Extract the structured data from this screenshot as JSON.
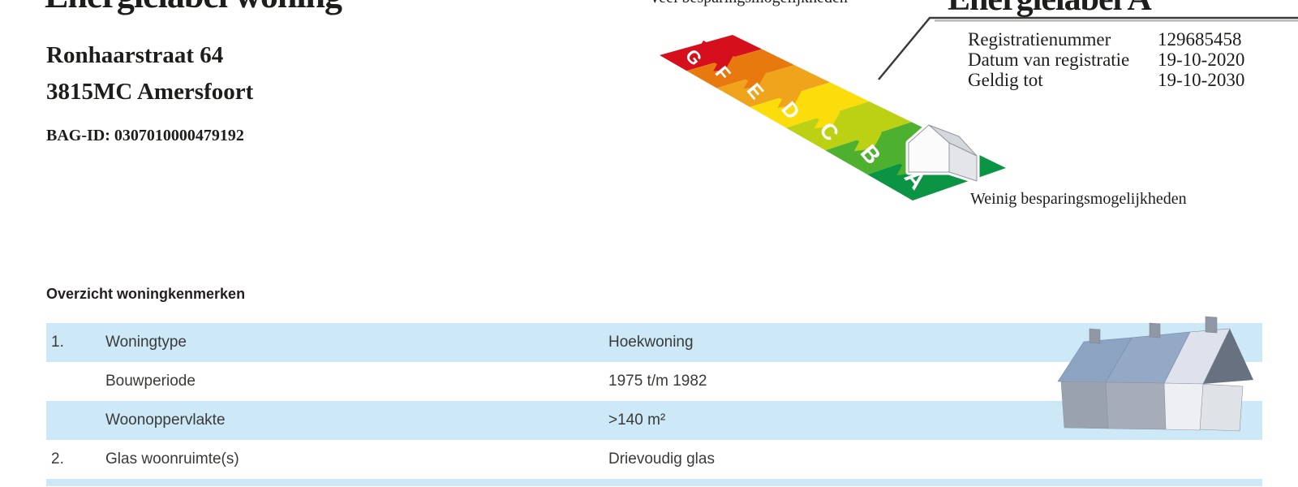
{
  "header": {
    "title": "Energielabel woning",
    "address_line1": "Ronhaarstraat 64",
    "address_line2": "3815MC Amersfoort",
    "bag_id": "BAG-ID: 0307010000479192"
  },
  "energy_scale": {
    "more_savings_label": "Veel besparingsmogelijkheden",
    "less_savings_label": "Weinig besparingsmogelijkheden",
    "classes": [
      "G",
      "F",
      "E",
      "D",
      "C",
      "B",
      "A"
    ],
    "class_colors": [
      "#d5101c",
      "#e8790f",
      "#f0a41c",
      "#fadd0a",
      "#bcd014",
      "#4db02f",
      "#0b9444"
    ],
    "current_class": "A"
  },
  "registration": {
    "title": "Energielabel A",
    "fields": [
      {
        "label": "Registratienummer",
        "value": "129685458"
      },
      {
        "label": "Datum van registratie",
        "value": "19-10-2020"
      },
      {
        "label": "Geldig tot",
        "value": "19-10-2030"
      }
    ]
  },
  "features_table": {
    "title": "Overzicht woningkenmerken",
    "stripe_color": "#cde9f8",
    "rows": [
      {
        "num": "1.",
        "label": "Woningtype",
        "value": "Hoekwoning"
      },
      {
        "num": "",
        "label": "Bouwperiode",
        "value": "1975 t/m 1982"
      },
      {
        "num": "",
        "label": "Woonoppervlakte",
        "value": ">140 m²"
      },
      {
        "num": "2.",
        "label": "Glas woonruimte(s)",
        "value": "Drievoudig glas"
      }
    ]
  }
}
